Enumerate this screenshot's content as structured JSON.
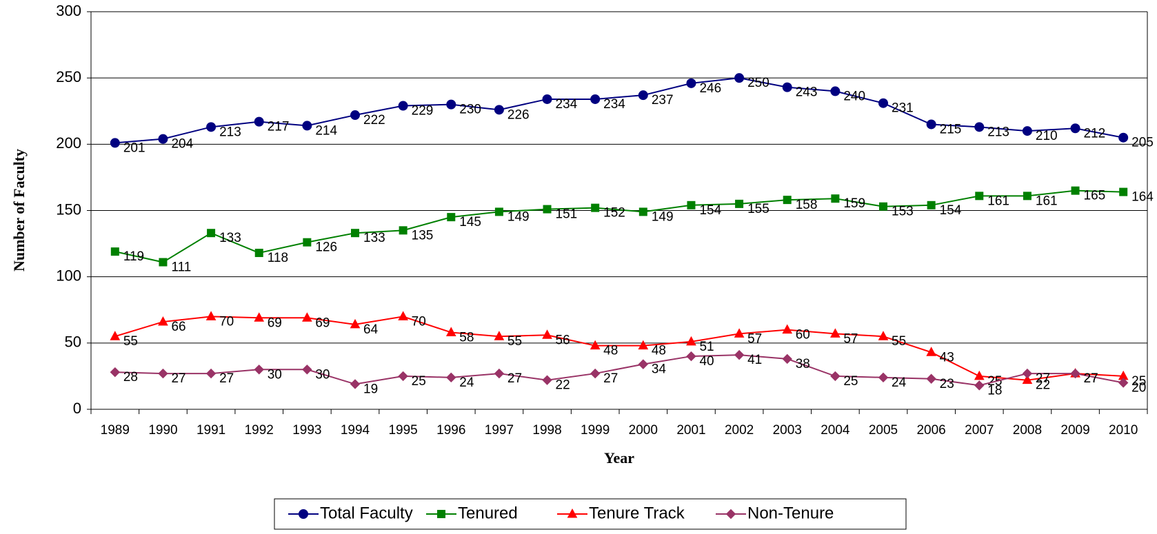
{
  "chart_data": {
    "type": "line",
    "y_label": "Number of  Faculty",
    "x_label": "Year",
    "categories": [
      "1989",
      "1990",
      "1991",
      "1992",
      "1993",
      "1994",
      "1995",
      "1996",
      "1997",
      "1998",
      "1999",
      "2000",
      "2001",
      "2002",
      "2003",
      "2004",
      "2005",
      "2006",
      "2007",
      "2008",
      "2009",
      "2010"
    ],
    "series": [
      {
        "name": "Total Faculty",
        "color": "#000080",
        "marker": "circle",
        "values": [
          201,
          204,
          213,
          217,
          214,
          222,
          229,
          230,
          226,
          234,
          234,
          237,
          246,
          250,
          243,
          240,
          231,
          215,
          213,
          210,
          212,
          205
        ]
      },
      {
        "name": "Tenured",
        "color": "#008000",
        "marker": "square",
        "values": [
          119,
          111,
          133,
          118,
          126,
          133,
          135,
          145,
          149,
          151,
          152,
          149,
          154,
          155,
          158,
          159,
          153,
          154,
          161,
          161,
          165,
          164
        ]
      },
      {
        "name": "Tenure Track",
        "color": "#ff0000",
        "marker": "triangle",
        "values": [
          55,
          66,
          70,
          69,
          69,
          64,
          70,
          58,
          55,
          56,
          48,
          48,
          51,
          57,
          60,
          57,
          55,
          43,
          25,
          22,
          27,
          25
        ]
      },
      {
        "name": "Non-Tenure",
        "color": "#993366",
        "marker": "diamond",
        "values": [
          28,
          27,
          27,
          30,
          30,
          19,
          25,
          24,
          27,
          22,
          27,
          34,
          40,
          41,
          38,
          25,
          24,
          23,
          18,
          27,
          27,
          20
        ]
      }
    ],
    "ylim": [
      0,
      300
    ],
    "yticks": [
      0,
      50,
      100,
      150,
      200,
      250,
      300
    ],
    "grid": true,
    "legend": "bottom"
  }
}
